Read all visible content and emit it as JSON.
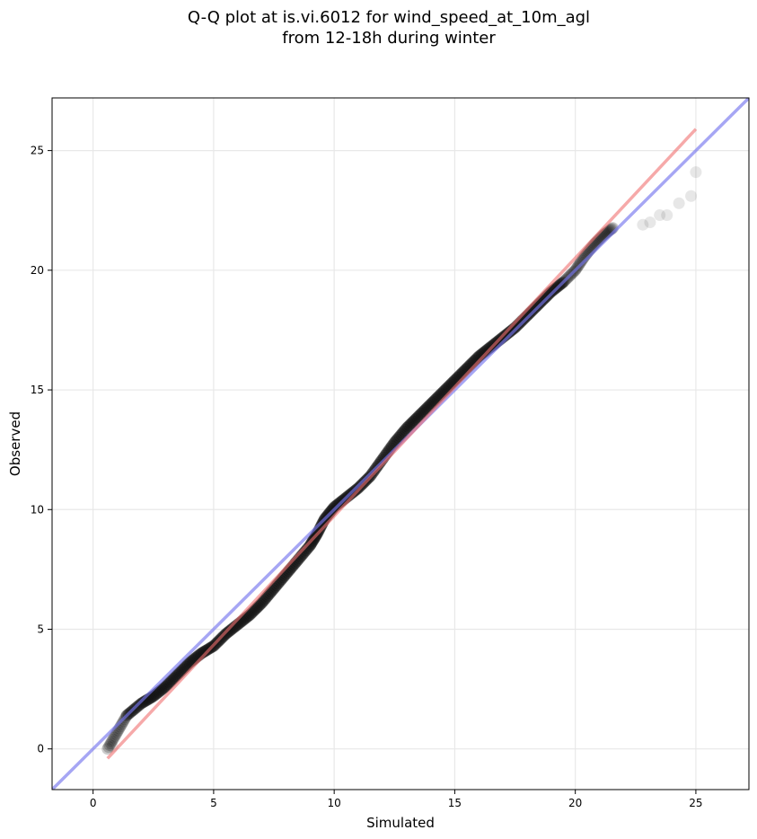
{
  "chart_data": {
    "type": "scatter",
    "title_line1": "Q-Q plot at is.vi.6012 for wind_speed_at_10m_agl",
    "title_line2": "from 12-18h during winter",
    "xlabel": "Simulated",
    "ylabel": "Observed",
    "xlim": [
      -1.7,
      27.2
    ],
    "ylim": [
      -1.7,
      27.2
    ],
    "xticks": [
      0,
      5,
      10,
      15,
      20,
      25
    ],
    "yticks": [
      0,
      5,
      10,
      15,
      20,
      25
    ],
    "grid": true,
    "quantile_curve": [
      [
        0.6,
        0.0
      ],
      [
        1.0,
        0.7
      ],
      [
        1.4,
        1.4
      ],
      [
        2.0,
        1.9
      ],
      [
        2.5,
        2.2
      ],
      [
        3.0,
        2.6
      ],
      [
        3.5,
        3.1
      ],
      [
        4.0,
        3.6
      ],
      [
        4.5,
        4.0
      ],
      [
        5.0,
        4.3
      ],
      [
        5.5,
        4.8
      ],
      [
        6.0,
        5.2
      ],
      [
        6.5,
        5.6
      ],
      [
        7.0,
        6.1
      ],
      [
        7.5,
        6.7
      ],
      [
        8.0,
        7.3
      ],
      [
        8.5,
        7.9
      ],
      [
        9.0,
        8.5
      ],
      [
        9.3,
        9.0
      ],
      [
        9.6,
        9.6
      ],
      [
        10.0,
        10.1
      ],
      [
        10.5,
        10.5
      ],
      [
        11.0,
        10.9
      ],
      [
        11.5,
        11.4
      ],
      [
        12.0,
        12.1
      ],
      [
        12.5,
        12.8
      ],
      [
        13.0,
        13.4
      ],
      [
        13.5,
        13.9
      ],
      [
        14.0,
        14.4
      ],
      [
        14.5,
        14.9
      ],
      [
        15.0,
        15.4
      ],
      [
        15.5,
        15.9
      ],
      [
        16.0,
        16.4
      ],
      [
        16.5,
        16.8
      ],
      [
        17.0,
        17.2
      ],
      [
        17.5,
        17.6
      ],
      [
        18.0,
        18.1
      ],
      [
        18.5,
        18.6
      ],
      [
        19.0,
        19.1
      ],
      [
        19.5,
        19.5
      ],
      [
        20.0,
        20.0
      ],
      [
        20.4,
        20.6
      ],
      [
        20.8,
        21.1
      ],
      [
        21.2,
        21.5
      ],
      [
        21.6,
        21.8
      ]
    ],
    "tail_points": [
      [
        0.8,
        0.1
      ],
      [
        22.8,
        21.9
      ],
      [
        23.1,
        22.0
      ],
      [
        23.5,
        22.3
      ],
      [
        23.8,
        22.3
      ],
      [
        24.3,
        22.8
      ],
      [
        24.8,
        23.1
      ],
      [
        25.0,
        24.1
      ]
    ],
    "reference_lines": {
      "identity": {
        "color": "#7777ee",
        "from": [
          -1.7,
          -1.7
        ],
        "to": [
          27.2,
          27.2
        ]
      },
      "fit": {
        "color": "#f07070",
        "from": [
          0.6,
          -0.4
        ],
        "to": [
          25.0,
          25.9
        ]
      }
    },
    "point_color": "#111111"
  }
}
